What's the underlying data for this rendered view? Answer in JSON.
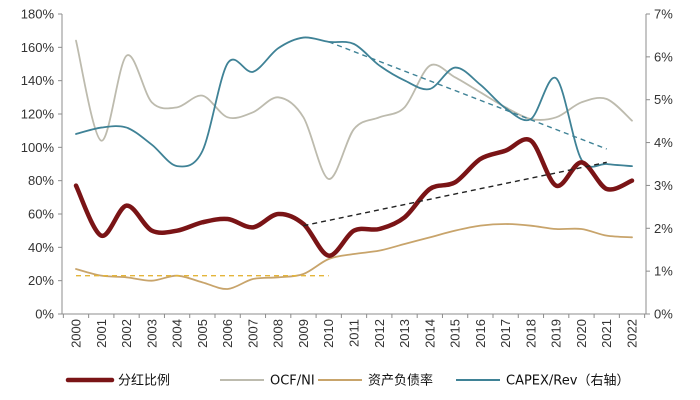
{
  "chart_data": {
    "type": "line",
    "categories": [
      "2000",
      "2001",
      "2002",
      "2003",
      "2004",
      "2005",
      "2006",
      "2007",
      "2008",
      "2009",
      "2010",
      "2011",
      "2012",
      "2013",
      "2014",
      "2015",
      "2016",
      "2017",
      "2018",
      "2019",
      "2020",
      "2021",
      "2022"
    ],
    "left_axis": {
      "ylim": [
        0,
        180
      ],
      "ticks": [
        0,
        20,
        40,
        60,
        80,
        100,
        120,
        140,
        160,
        180
      ],
      "tick_labels": [
        "0%",
        "20%",
        "40%",
        "60%",
        "80%",
        "100%",
        "120%",
        "140%",
        "160%",
        "180%"
      ]
    },
    "right_axis": {
      "ylim": [
        0,
        7
      ],
      "ticks": [
        0,
        1,
        2,
        3,
        4,
        5,
        6,
        7
      ],
      "tick_labels": [
        "0%",
        "1%",
        "2%",
        "3%",
        "4%",
        "5%",
        "6%",
        "7%"
      ]
    },
    "series": [
      {
        "name": "分红比例",
        "axis": "left",
        "color": "#7a1416",
        "width": 4.5,
        "values": [
          77,
          47,
          65,
          50,
          50,
          55,
          57,
          52,
          60,
          54,
          35,
          50,
          51,
          58,
          75,
          79,
          93,
          98,
          104,
          77,
          91,
          75,
          80
        ]
      },
      {
        "name": "OCF/NI",
        "axis": "left",
        "color": "#bdbbae",
        "width": 1.8,
        "values": [
          164,
          104,
          155,
          127,
          124,
          131,
          118,
          121,
          130,
          118,
          81,
          111,
          118,
          124,
          149,
          142,
          133,
          124,
          117,
          118,
          127,
          129,
          116
        ]
      },
      {
        "name": "资产负债率",
        "axis": "left",
        "color": "#c8a46b",
        "width": 1.8,
        "values": [
          27,
          23,
          22,
          20,
          23,
          19,
          15,
          21,
          22,
          24,
          33,
          36,
          38,
          42,
          46,
          50,
          53,
          54,
          53,
          51,
          51,
          47,
          46
        ]
      },
      {
        "name": "CAPEX/Rev（右轴）",
        "axis": "right",
        "color": "#3f8296",
        "width": 1.8,
        "values": [
          4.2,
          4.35,
          4.35,
          3.95,
          3.45,
          3.8,
          5.85,
          5.65,
          6.2,
          6.45,
          6.35,
          6.3,
          5.8,
          5.45,
          5.25,
          5.75,
          5.35,
          4.8,
          4.55,
          5.5,
          3.6,
          3.5,
          3.45
        ]
      }
    ],
    "trendlines": [
      {
        "axis": "right",
        "color": "#3f8296",
        "from": {
          "x": "2010",
          "y": 6.35
        },
        "to": {
          "x": "2021",
          "y": 3.85
        }
      },
      {
        "axis": "left",
        "color": "#222222",
        "from": {
          "x": "2009",
          "y": 53
        },
        "to": {
          "x": "2021",
          "y": 91
        }
      },
      {
        "axis": "left",
        "color": "#e4b53a",
        "from": {
          "x": "2000",
          "y": 23
        },
        "to": {
          "x": "2010",
          "y": 23
        }
      }
    ],
    "legend": {
      "position": "bottom",
      "items": [
        {
          "label": "分红比例",
          "color": "#7a1416",
          "width": 4.5
        },
        {
          "label": "OCF/NI",
          "color": "#bdbbae",
          "width": 2
        },
        {
          "label": "资产负债率",
          "color": "#c8a46b",
          "width": 2
        },
        {
          "label": "CAPEX/Rev（右轴）",
          "color": "#3f8296",
          "width": 2
        }
      ]
    },
    "grid": false
  }
}
